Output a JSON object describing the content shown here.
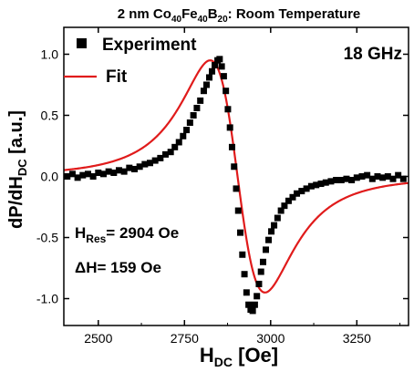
{
  "chart_data": {
    "type": "scatter",
    "title": {
      "pre": "2 nm Co",
      "s1": "40",
      "mid1": "Fe",
      "s2": "40",
      "mid2": "B",
      "s3": "20",
      "post": ": Room Temperature"
    },
    "xlabel": {
      "main": "H",
      "sub": "DC",
      "post": " [Oe]"
    },
    "ylabel": {
      "pre": "dP/dH",
      "sub": "DC",
      "post": " [a.u.]"
    },
    "xlim": [
      2400,
      3400
    ],
    "ylim": [
      -1.22,
      1.22
    ],
    "xticks": [
      "2500",
      "2750",
      "3000",
      "3250"
    ],
    "xtick_values": [
      2500,
      2750,
      3000,
      3250
    ],
    "yticks": [
      "-1.0",
      "-0.5",
      "0.0",
      "0.5",
      "1.0"
    ],
    "ytick_values": [
      -1.0,
      -0.5,
      0.0,
      0.5,
      1.0
    ],
    "legend": {
      "placement": "top-left",
      "experiment_label": "Experiment",
      "fit_label": "Fit"
    },
    "frequency_label": "18 GHz",
    "annotations": {
      "hres": {
        "pre": "H",
        "sub": "Res",
        "post": "= 2904 Oe"
      },
      "dh": {
        "pre": "ΔH= 159 Oe"
      }
    },
    "fit": {
      "h_res": 2904,
      "delta_h": 159,
      "peak_amplitude": 0.95
    },
    "series": [
      {
        "name": "Experiment",
        "marker": "square",
        "color": "#000000",
        "x": [
          2410,
          2425,
          2440,
          2455,
          2470,
          2485,
          2500,
          2515,
          2530,
          2545,
          2560,
          2575,
          2590,
          2605,
          2620,
          2635,
          2650,
          2665,
          2680,
          2695,
          2710,
          2722,
          2734,
          2746,
          2756,
          2766,
          2776,
          2786,
          2796,
          2806,
          2814,
          2822,
          2830,
          2838,
          2846,
          2852,
          2858,
          2864,
          2870,
          2876,
          2882,
          2888,
          2894,
          2900,
          2906,
          2912,
          2918,
          2924,
          2930,
          2936,
          2942,
          2948,
          2954,
          2960,
          2966,
          2972,
          2978,
          2986,
          2994,
          3002,
          3010,
          3020,
          3030,
          3040,
          3052,
          3064,
          3076,
          3090,
          3104,
          3118,
          3132,
          3146,
          3160,
          3175,
          3190,
          3205,
          3220,
          3235,
          3250,
          3265,
          3280,
          3295,
          3310,
          3325,
          3340,
          3355,
          3370,
          3385
        ],
        "y": [
          0.0,
          0.02,
          -0.01,
          0.01,
          0.02,
          0.0,
          0.03,
          0.02,
          0.04,
          0.03,
          0.05,
          0.04,
          0.07,
          0.06,
          0.08,
          0.1,
          0.11,
          0.13,
          0.15,
          0.18,
          0.2,
          0.24,
          0.28,
          0.33,
          0.38,
          0.44,
          0.5,
          0.56,
          0.62,
          0.7,
          0.75,
          0.81,
          0.86,
          0.91,
          0.95,
          0.96,
          0.9,
          0.82,
          0.7,
          0.55,
          0.4,
          0.24,
          0.08,
          -0.1,
          -0.28,
          -0.46,
          -0.64,
          -0.8,
          -0.95,
          -1.05,
          -1.09,
          -1.1,
          -1.05,
          -0.98,
          -0.88,
          -0.78,
          -0.7,
          -0.6,
          -0.52,
          -0.45,
          -0.4,
          -0.34,
          -0.28,
          -0.24,
          -0.2,
          -0.17,
          -0.14,
          -0.12,
          -0.1,
          -0.08,
          -0.07,
          -0.06,
          -0.05,
          -0.04,
          -0.03,
          -0.03,
          -0.02,
          -0.03,
          -0.01,
          0.0,
          0.01,
          -0.02,
          0.0,
          -0.01,
          0.0,
          -0.02,
          0.01,
          -0.02
        ]
      },
      {
        "name": "Fit",
        "line": true,
        "color": "#e01b1b"
      }
    ]
  }
}
